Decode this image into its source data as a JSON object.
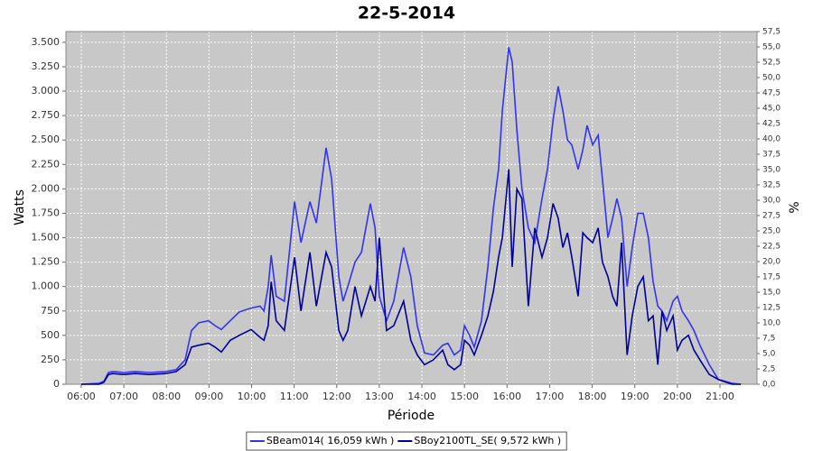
{
  "chart_data": {
    "type": "line",
    "title": "22-5-2014",
    "x_label": "Période",
    "y_label": "Watts",
    "y2_label": "%",
    "x": [
      6.0,
      6.42,
      6.53,
      6.64,
      6.74,
      7.0,
      7.27,
      7.59,
      7.99,
      8.23,
      8.44,
      8.59,
      8.76,
      8.99,
      9.14,
      9.29,
      9.5,
      9.71,
      9.99,
      10.2,
      10.29,
      10.39,
      10.46,
      10.58,
      10.77,
      11.01,
      11.16,
      11.37,
      11.52,
      11.75,
      11.88,
      12.05,
      12.15,
      12.26,
      12.43,
      12.58,
      12.79,
      12.9,
      13.0,
      13.17,
      13.34,
      13.57,
      13.74,
      13.89,
      14.06,
      14.27,
      14.49,
      14.61,
      14.76,
      14.91,
      15.0,
      15.12,
      15.23,
      15.4,
      15.55,
      15.68,
      15.8,
      15.89,
      16.04,
      16.12,
      16.23,
      16.35,
      16.5,
      16.65,
      16.82,
      16.95,
      17.08,
      17.2,
      17.31,
      17.42,
      17.52,
      17.67,
      17.78,
      17.88,
      18.01,
      18.14,
      18.24,
      18.37,
      18.48,
      18.58,
      18.69,
      18.82,
      18.94,
      19.07,
      19.2,
      19.32,
      19.43,
      19.54,
      19.64,
      19.75,
      19.9,
      20.0,
      20.11,
      20.26,
      20.39,
      20.53,
      20.75,
      20.96,
      21.28,
      21.49
    ],
    "series": [
      {
        "name": "SBeam014( 16,059 kWh )",
        "color": "#3333ee",
        "values": [
          0,
          10,
          30,
          120,
          130,
          120,
          130,
          120,
          130,
          150,
          250,
          550,
          630,
          650,
          600,
          560,
          650,
          740,
          780,
          800,
          750,
          1000,
          1320,
          900,
          850,
          1870,
          1450,
          1870,
          1650,
          2420,
          2100,
          1100,
          850,
          1000,
          1250,
          1350,
          1850,
          1600,
          900,
          650,
          850,
          1400,
          1100,
          600,
          320,
          300,
          400,
          420,
          300,
          350,
          600,
          500,
          380,
          650,
          1200,
          1800,
          2200,
          2800,
          3450,
          3300,
          2600,
          2000,
          1600,
          1450,
          1900,
          2200,
          2700,
          3050,
          2800,
          2500,
          2450,
          2200,
          2400,
          2650,
          2450,
          2550,
          2100,
          1500,
          1700,
          1900,
          1700,
          1000,
          1400,
          1750,
          1750,
          1500,
          1050,
          800,
          750,
          650,
          850,
          900,
          750,
          650,
          550,
          400,
          200,
          50,
          10,
          0
        ]
      },
      {
        "name": "SBoy2100TL_SE( 9,572 kWh )",
        "color": "#000099",
        "values": [
          0,
          0,
          20,
          100,
          110,
          100,
          110,
          100,
          110,
          130,
          200,
          380,
          400,
          420,
          380,
          330,
          450,
          500,
          560,
          480,
          450,
          600,
          1050,
          650,
          550,
          1300,
          750,
          1350,
          800,
          1350,
          1200,
          550,
          450,
          550,
          1000,
          700,
          1000,
          850,
          1500,
          550,
          600,
          850,
          450,
          300,
          200,
          250,
          350,
          200,
          150,
          200,
          450,
          400,
          300,
          500,
          700,
          950,
          1300,
          1500,
          2200,
          1200,
          2000,
          1900,
          800,
          1600,
          1300,
          1500,
          1850,
          1700,
          1400,
          1550,
          1300,
          900,
          1550,
          1500,
          1450,
          1600,
          1250,
          1100,
          900,
          800,
          1450,
          300,
          700,
          1000,
          1100,
          650,
          700,
          200,
          750,
          550,
          700,
          350,
          450,
          500,
          350,
          250,
          100,
          50,
          0,
          0
        ]
      }
    ],
    "xlim": [
      5.64,
      21.87
    ],
    "xticks": [
      {
        "value": 6,
        "label": "06:00"
      },
      {
        "value": 7,
        "label": "07:00"
      },
      {
        "value": 8,
        "label": "08:00"
      },
      {
        "value": 9,
        "label": "09:00"
      },
      {
        "value": 10,
        "label": "10:00"
      },
      {
        "value": 11,
        "label": "11:00"
      },
      {
        "value": 12,
        "label": "12:00"
      },
      {
        "value": 13,
        "label": "13:00"
      },
      {
        "value": 14,
        "label": "14:00"
      },
      {
        "value": 15,
        "label": "15:00"
      },
      {
        "value": 16,
        "label": "16:00"
      },
      {
        "value": 17,
        "label": "17:00"
      },
      {
        "value": 18,
        "label": "18:00"
      },
      {
        "value": 19,
        "label": "19:00"
      },
      {
        "value": 20,
        "label": "20:00"
      },
      {
        "value": 21,
        "label": "21:00"
      }
    ],
    "ylim": [
      0,
      3610
    ],
    "yticks": [
      0,
      250,
      500,
      750,
      {
        "value": 1000,
        "label": "1.000"
      },
      {
        "value": 1250,
        "label": "1.250"
      },
      {
        "value": 1500,
        "label": "1.500"
      },
      {
        "value": 1750,
        "label": "1.750"
      },
      {
        "value": 2000,
        "label": "2.000"
      },
      {
        "value": 2250,
        "label": "2.250"
      },
      {
        "value": 2500,
        "label": "2.500"
      },
      {
        "value": 2750,
        "label": "2.750"
      },
      {
        "value": 3000,
        "label": "3.000"
      },
      {
        "value": 3250,
        "label": "3.250"
      },
      {
        "value": 3500,
        "label": "3.500"
      }
    ],
    "y2lim": [
      0,
      57.5
    ],
    "y2ticks": [
      {
        "value": 0,
        "label": "0,0"
      },
      {
        "value": 2.5,
        "label": "2,5"
      },
      {
        "value": 5,
        "label": "5,0"
      },
      {
        "value": 7.5,
        "label": "7,5"
      },
      {
        "value": 10,
        "label": "10,0"
      },
      {
        "value": 12.5,
        "label": "12,5"
      },
      {
        "value": 15,
        "label": "15,0"
      },
      {
        "value": 17.5,
        "label": "17,5"
      },
      {
        "value": 20,
        "label": "20,0"
      },
      {
        "value": 22.5,
        "label": "22,5"
      },
      {
        "value": 25,
        "label": "25,0"
      },
      {
        "value": 27.5,
        "label": "27,5"
      },
      {
        "value": 30,
        "label": "30,0"
      },
      {
        "value": 32.5,
        "label": "32,5"
      },
      {
        "value": 35,
        "label": "35,0"
      },
      {
        "value": 37.5,
        "label": "37,5"
      },
      {
        "value": 40,
        "label": "40,0"
      },
      {
        "value": 42.5,
        "label": "42,5"
      },
      {
        "value": 45,
        "label": "45,0"
      },
      {
        "value": 47.5,
        "label": "47,5"
      },
      {
        "value": 50,
        "label": "50,0"
      },
      {
        "value": 52.5,
        "label": "52,5"
      },
      {
        "value": 55,
        "label": "55,0"
      },
      {
        "value": 57.5,
        "label": "57,5"
      }
    ],
    "grid": true,
    "legend": "bottom",
    "plot_background": "#c8c8c8"
  }
}
